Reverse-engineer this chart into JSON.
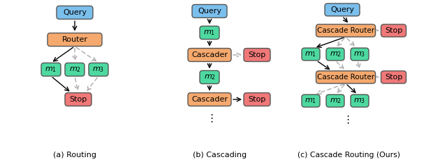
{
  "fig_width": 6.4,
  "fig_height": 2.33,
  "dpi": 100,
  "bg_color": "#ffffff",
  "colors": {
    "query": "#7bbfed",
    "router": "#f5a96e",
    "model": "#4dd9a0",
    "stop": "#f07878",
    "text": "#000000"
  },
  "captions": [
    "(a) Routing",
    "(b) Cascading",
    "(c) Cascade Routing (Ours)"
  ]
}
